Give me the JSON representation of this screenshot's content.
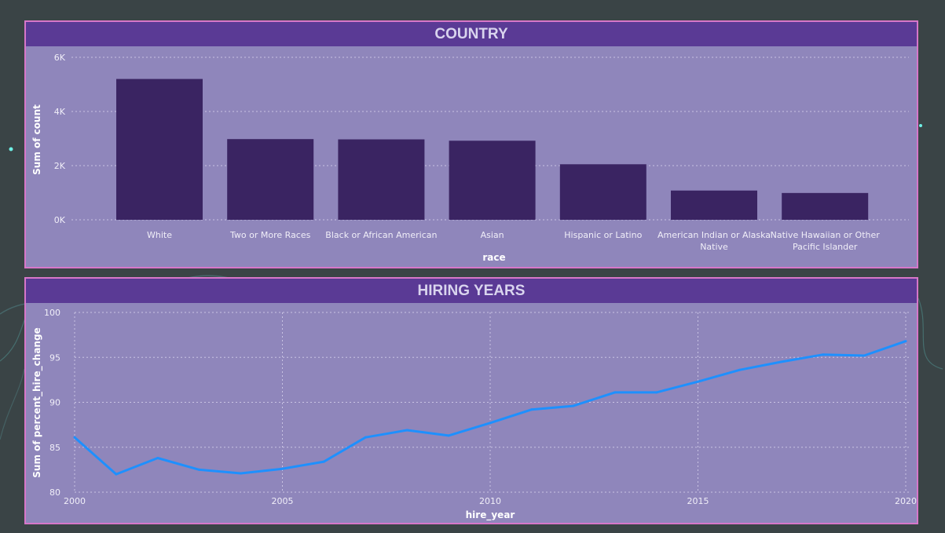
{
  "dashboard": {
    "colors": {
      "background": "#3a4446",
      "panel_fill": "#8f86bb",
      "panel_border": "#d777c9",
      "header_fill": "#5a3a95",
      "bar_fill": "#3a2462",
      "line_color": "#1e90ff"
    }
  },
  "chart_data": [
    {
      "type": "bar",
      "title": "COUNTRY",
      "xlabel": "race",
      "ylabel": "Sum of count",
      "categories": [
        "White",
        "Two or More Races",
        "Black or African American",
        "Asian",
        "Hispanic or Latino",
        "American Indian or Alaska Native",
        "Native Hawaiian or Other Pacific Islander"
      ],
      "category_lines": [
        [
          "White"
        ],
        [
          "Two or More Races"
        ],
        [
          "Black or African American"
        ],
        [
          "Asian"
        ],
        [
          "Hispanic or Latino"
        ],
        [
          "American Indian or Alaska",
          "Native"
        ],
        [
          "Native Hawaiian or Other",
          "Pacific Islander"
        ]
      ],
      "values": [
        5200,
        2980,
        2970,
        2920,
        2050,
        1080,
        990
      ],
      "ylim": [
        0,
        6000
      ],
      "yticks": [
        0,
        2000,
        4000,
        6000
      ],
      "ytick_labels": [
        "0K",
        "2K",
        "4K",
        "6K"
      ],
      "grid": true
    },
    {
      "type": "line",
      "title": "HIRING YEARS",
      "xlabel": "hire_year",
      "ylabel": "Sum of percent_hire_change",
      "x": [
        2000,
        2001,
        2002,
        2003,
        2004,
        2005,
        2006,
        2007,
        2008,
        2009,
        2010,
        2011,
        2012,
        2013,
        2014,
        2015,
        2016,
        2017,
        2018,
        2019,
        2020
      ],
      "y": [
        86.1,
        82.0,
        83.8,
        82.5,
        82.1,
        82.6,
        83.4,
        86.1,
        86.9,
        86.3,
        87.7,
        89.2,
        89.6,
        91.1,
        91.1,
        92.3,
        93.6,
        94.5,
        95.3,
        95.2,
        96.8
      ],
      "xlim": [
        2000,
        2020
      ],
      "ylim": [
        80,
        100
      ],
      "xticks": [
        2000,
        2005,
        2010,
        2015,
        2020
      ],
      "yticks": [
        80,
        85,
        90,
        95,
        100
      ],
      "grid": true
    }
  ]
}
